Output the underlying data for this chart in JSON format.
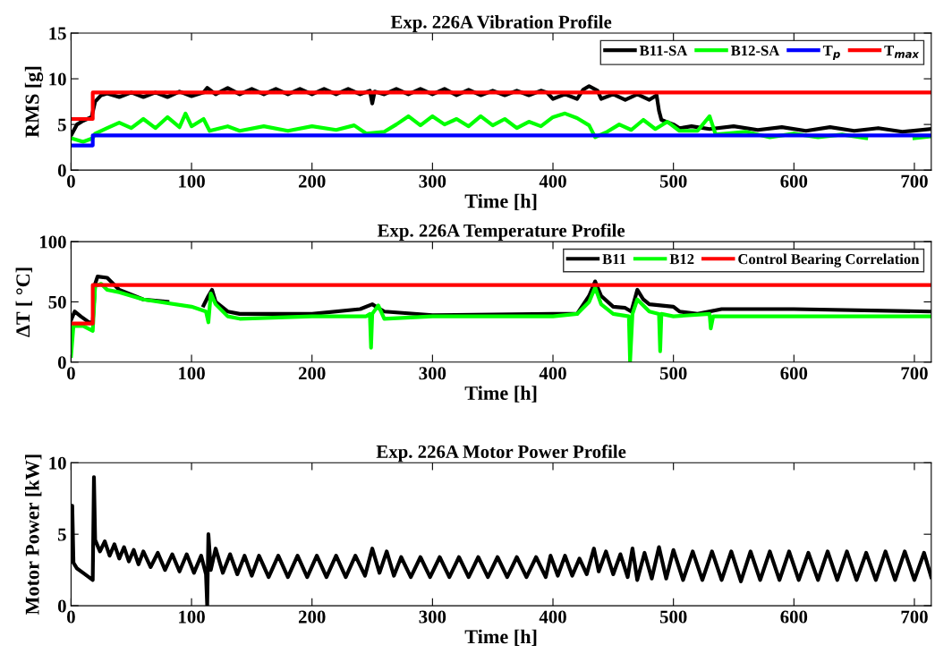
{
  "chart_data": [
    {
      "type": "line",
      "title": "Exp. 226A Vibration Profile",
      "xlabel": "Time [h]",
      "ylabel": "RMS [g]",
      "xlim": [
        0,
        714
      ],
      "xticks": [
        0,
        100,
        200,
        300,
        400,
        500,
        600,
        700
      ],
      "ylim": [
        0,
        15
      ],
      "yticks": [
        0,
        5,
        10,
        15
      ],
      "grid": false,
      "legend": "top right",
      "series": [
        {
          "name": "B11-SA",
          "color": "#000000",
          "x": [
            0,
            5,
            10,
            17,
            20,
            25,
            30,
            40,
            50,
            60,
            70,
            80,
            90,
            100,
            110,
            113,
            120,
            130,
            140,
            150,
            160,
            170,
            180,
            190,
            200,
            210,
            220,
            230,
            240,
            248,
            250,
            252,
            260,
            270,
            280,
            290,
            300,
            310,
            320,
            330,
            340,
            350,
            360,
            370,
            380,
            390,
            395,
            400,
            410,
            420,
            425,
            430,
            437,
            440,
            450,
            460,
            470,
            480,
            486,
            488,
            490,
            500,
            505,
            515,
            530,
            550,
            570,
            590,
            610,
            630,
            650,
            670,
            690,
            714
          ],
          "values": [
            3.8,
            5,
            5.4,
            5.8,
            7.5,
            8.2,
            8.4,
            8.0,
            8.5,
            8.0,
            8.5,
            8.0,
            8.6,
            8.1,
            8.5,
            9.0,
            8.3,
            9.0,
            8.3,
            8.9,
            8.3,
            8.9,
            8.3,
            8.9,
            8.3,
            8.9,
            8.3,
            8.9,
            8.3,
            8.7,
            7.3,
            8.6,
            8.3,
            8.9,
            8.3,
            8.9,
            8.3,
            8.9,
            8.2,
            8.8,
            8.2,
            8.7,
            8.2,
            8.7,
            8.2,
            8.7,
            8.5,
            7.8,
            8.3,
            7.8,
            8.8,
            9.2,
            8.7,
            7.8,
            8.3,
            7.7,
            8.3,
            7.7,
            8.2,
            6.5,
            5.5,
            5.0,
            4.6,
            4.8,
            4.5,
            4.8,
            4.4,
            4.7,
            4.3,
            4.7,
            4.3,
            4.6,
            4.2,
            4.5
          ]
        },
        {
          "name": "B12-SA",
          "color": "#00ff00",
          "x": [
            0,
            10,
            18,
            20,
            30,
            40,
            50,
            60,
            70,
            80,
            90,
            95,
            100,
            110,
            115,
            130,
            140,
            160,
            180,
            200,
            220,
            235,
            245,
            260,
            270,
            280,
            290,
            300,
            310,
            320,
            330,
            340,
            350,
            360,
            370,
            380,
            390,
            400,
            410,
            420,
            430,
            435,
            445,
            455,
            465,
            475,
            485,
            495,
            505,
            520,
            530,
            535,
            560,
            580,
            600,
            620,
            640,
            660,
            680,
            700,
            714
          ],
          "values": [
            3.5,
            3.1,
            3.5,
            4.0,
            4.6,
            5.2,
            4.6,
            5.6,
            4.6,
            5.8,
            4.7,
            6.2,
            4.8,
            5.6,
            4.3,
            4.8,
            4.3,
            4.8,
            4.3,
            4.8,
            4.4,
            4.9,
            4.0,
            4.2,
            5.0,
            5.9,
            4.9,
            5.9,
            5.0,
            5.6,
            4.8,
            5.9,
            4.9,
            5.6,
            4.6,
            5.3,
            4.8,
            5.8,
            6.2,
            5.7,
            4.9,
            3.6,
            4.2,
            5.0,
            4.4,
            5.5,
            4.5,
            5.3,
            4.3,
            4.3,
            5.9,
            3.9,
            4.2,
            3.6,
            4.0,
            3.6,
            3.9,
            3.5,
            null,
            3.5,
            3.7
          ]
        },
        {
          "name": "T$_{p}$",
          "type": "step",
          "color": "#0000ff",
          "x": [
            0,
            18,
            714
          ],
          "values": [
            2.7,
            3.8,
            3.8
          ]
        },
        {
          "name": "T$_{max}$",
          "type": "step",
          "color": "#ff0000",
          "x": [
            0,
            18,
            714
          ],
          "values": [
            5.6,
            8.5,
            8.5
          ]
        }
      ]
    },
    {
      "type": "line",
      "title": "Exp. 226A Temperature Profile",
      "xlabel": "Time [h]",
      "ylabel": "ΔT [ °C]",
      "xlim": [
        0,
        714
      ],
      "xticks": [
        0,
        100,
        200,
        300,
        400,
        500,
        600,
        700
      ],
      "ylim": [
        0,
        100
      ],
      "yticks": [
        0,
        50,
        100
      ],
      "grid": false,
      "legend": "top right",
      "series": [
        {
          "name": "B11",
          "color": "#000000",
          "x": [
            0,
            3,
            8,
            15,
            18,
            20,
            22,
            30,
            40,
            60,
            80,
            100,
            110,
            114,
            117,
            120,
            130,
            140,
            200,
            240,
            250,
            255,
            260,
            300,
            400,
            420,
            430,
            435,
            440,
            450,
            460,
            465,
            470,
            475,
            480,
            500,
            505,
            520,
            540,
            600,
            714
          ],
          "values": [
            35,
            42,
            38,
            33,
            33,
            65,
            71,
            70,
            60,
            52,
            50,
            null,
            47,
            55,
            60,
            50,
            42,
            40,
            40,
            44,
            48,
            45,
            42,
            39,
            40,
            40,
            55,
            67,
            55,
            46,
            45,
            42,
            60,
            52,
            48,
            46,
            42,
            40,
            44,
            44,
            42
          ]
        },
        {
          "name": "B12",
          "color": "#00ff00",
          "x": [
            0,
            2,
            10,
            18,
            20,
            25,
            30,
            40,
            60,
            100,
            112,
            114,
            116,
            120,
            130,
            140,
            200,
            245,
            248,
            249,
            250,
            255,
            260,
            300,
            400,
            420,
            430,
            435,
            440,
            450,
            463,
            464,
            466,
            470,
            480,
            488,
            489,
            490,
            500,
            530,
            531,
            533,
            600,
            714
          ],
          "values": [
            5,
            30,
            30,
            26,
            63,
            65,
            60,
            58,
            52,
            46,
            42,
            33,
            57,
            48,
            38,
            36,
            38,
            38,
            40,
            12,
            40,
            47,
            36,
            38,
            38,
            40,
            50,
            62,
            48,
            40,
            38,
            0,
            40,
            52,
            42,
            40,
            9,
            40,
            38,
            40,
            28,
            38,
            38,
            38
          ]
        },
        {
          "name": "Control Bearing Correlation",
          "type": "step",
          "color": "#ff0000",
          "x": [
            0,
            18,
            714
          ],
          "values": [
            32,
            64,
            64
          ]
        }
      ]
    },
    {
      "type": "line",
      "title": "Exp. 226A Motor Power Profile",
      "xlabel": "Time [h]",
      "ylabel": "Motor Power [kW]",
      "xlim": [
        0,
        714
      ],
      "xticks": [
        0,
        100,
        200,
        300,
        400,
        500,
        600,
        700
      ],
      "ylim": [
        0,
        10
      ],
      "yticks": [
        0,
        5,
        10
      ],
      "grid": false,
      "series": [
        {
          "color": "#000000",
          "x": [
            0,
            1,
            2,
            5,
            10,
            18,
            19,
            20,
            24,
            28,
            32,
            36,
            40,
            44,
            48,
            52,
            56,
            60,
            66,
            72,
            78,
            84,
            90,
            96,
            102,
            108,
            112,
            113,
            114,
            116,
            120,
            126,
            132,
            138,
            144,
            150,
            156,
            164,
            172,
            180,
            188,
            196,
            204,
            212,
            220,
            228,
            236,
            244,
            250,
            256,
            262,
            268,
            274,
            282,
            290,
            298,
            306,
            314,
            322,
            330,
            338,
            346,
            354,
            362,
            370,
            378,
            386,
            394,
            398,
            404,
            410,
            416,
            422,
            428,
            434,
            438,
            444,
            450,
            456,
            462,
            466,
            470,
            476,
            482,
            488,
            494,
            500,
            508,
            516,
            524,
            532,
            540,
            548,
            556,
            564,
            572,
            580,
            588,
            596,
            604,
            612,
            620,
            628,
            636,
            644,
            652,
            660,
            668,
            676,
            684,
            692,
            700,
            708,
            714
          ],
          "values": [
            5,
            7,
            3,
            2.6,
            2.3,
            1.8,
            9,
            4.6,
            3.8,
            4.5,
            3.5,
            4.3,
            3.3,
            4.1,
            3.1,
            3.9,
            2.9,
            3.8,
            2.7,
            3.7,
            2.5,
            3.6,
            2.4,
            3.6,
            2.3,
            3.5,
            2.2,
            0,
            5,
            2.5,
            4,
            2.3,
            3.6,
            2.2,
            3.5,
            2.1,
            3.5,
            2.0,
            3.5,
            2.0,
            3.5,
            2.0,
            3.5,
            2.0,
            3.5,
            2.0,
            3.5,
            2.1,
            4.0,
            2.3,
            3.8,
            2.1,
            3.4,
            2.0,
            3.4,
            2.0,
            3.4,
            2.0,
            3.4,
            2.0,
            3.4,
            2.0,
            3.4,
            2.0,
            3.4,
            2.0,
            3.4,
            2.0,
            3.5,
            2.1,
            3.5,
            2.1,
            3.3,
            2.2,
            4.0,
            2.4,
            3.8,
            2.2,
            3.6,
            2.0,
            4.0,
            1.8,
            3.7,
            1.9,
            4.1,
            1.9,
            3.9,
            1.8,
            3.8,
            1.8,
            3.8,
            1.8,
            3.8,
            1.7,
            3.8,
            1.8,
            3.8,
            1.8,
            3.8,
            1.8,
            3.7,
            1.8,
            3.8,
            1.8,
            3.8,
            1.8,
            3.7,
            1.8,
            3.8,
            1.8,
            3.8,
            1.8,
            3.7,
            2.0
          ]
        }
      ]
    }
  ]
}
